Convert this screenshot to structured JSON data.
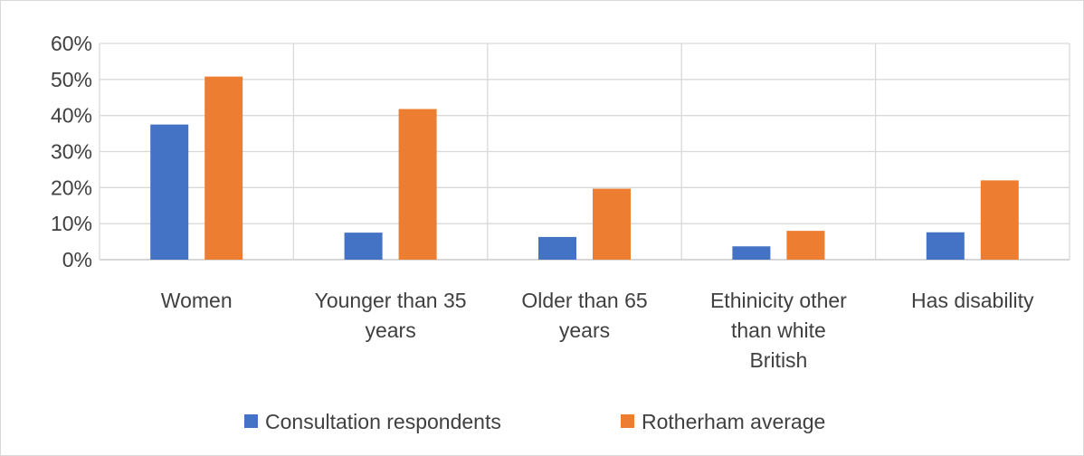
{
  "chart_data": {
    "type": "bar",
    "categories": [
      [
        "Women"
      ],
      [
        "Younger than 35",
        "years"
      ],
      [
        "Older than 65",
        "years"
      ],
      [
        "Ethinicity other",
        "than white",
        "British"
      ],
      [
        "Has disability"
      ]
    ],
    "series": [
      {
        "name": "Consultation respondents",
        "color": "#4472C4",
        "values": [
          37.5,
          7.5,
          6.3,
          3.7,
          7.6
        ]
      },
      {
        "name": "Rotherham average",
        "color": "#ED7D31",
        "values": [
          50.8,
          41.8,
          19.7,
          8.0,
          22.0
        ]
      }
    ],
    "ylim": [
      0,
      60
    ],
    "yticks": [
      "0%",
      "10%",
      "20%",
      "30%",
      "40%",
      "50%",
      "60%"
    ],
    "grid": true,
    "legend_position": "bottom"
  }
}
